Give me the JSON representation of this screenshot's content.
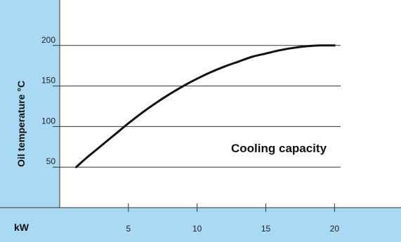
{
  "chart_data": {
    "type": "line",
    "ylabel": "Oil temperature °C",
    "xunit_label": "kW",
    "annotation": "Cooling capacity",
    "xlim": [
      0,
      25
    ],
    "ylim": [
      0,
      250
    ],
    "x_ticks": [
      5,
      10,
      15,
      20
    ],
    "y_ticks": [
      50,
      100,
      150,
      200
    ],
    "grid": "horizontal",
    "series": [
      {
        "x": [
          1.2,
          2,
          3,
          4,
          5,
          6,
          7,
          8,
          9,
          10,
          11,
          12,
          13,
          14,
          15,
          16,
          17,
          18,
          19,
          20
        ],
        "values": [
          50,
          62,
          76,
          90,
          104,
          117,
          129,
          140,
          150,
          159,
          167,
          174,
          180,
          186,
          190,
          194,
          197,
          199,
          200,
          200
        ]
      }
    ]
  },
  "colors": {
    "panel": "#a9d9f3",
    "plot_bg": "#ffffff",
    "line": "#111111",
    "grid": "#333333"
  }
}
